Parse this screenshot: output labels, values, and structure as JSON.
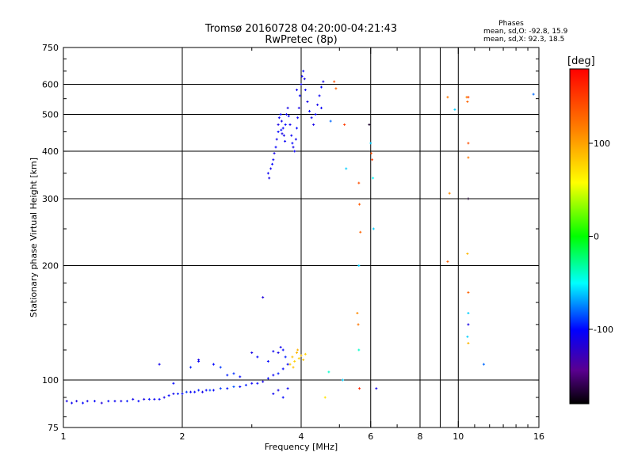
{
  "chart_data": {
    "type": "scatter",
    "title_line1": "Tromsø 20160728 04:20:00-04:21:43",
    "title_line2": "RwPretec (8p)",
    "stats": {
      "heading": "Phases",
      "line_o": "mean, sd,O: -92.8, 15.9",
      "line_x": "mean, sd,X:  92.3, 18.5"
    },
    "xlabel": "Frequency [MHz]",
    "ylabel": "Stationary phase Virtual Height [km]",
    "x_scale": "log",
    "y_scale": "log",
    "xlim": [
      1,
      16
    ],
    "ylim": [
      75,
      750
    ],
    "x_ticks": [
      {
        "v": 1,
        "label": "1"
      },
      {
        "v": 2,
        "label": "2"
      },
      {
        "v": 4,
        "label": "4"
      },
      {
        "v": 6,
        "label": "6"
      },
      {
        "v": 8,
        "label": "8"
      },
      {
        "v": 10,
        "label": "10"
      },
      {
        "v": 16,
        "label": "16"
      }
    ],
    "x_minor_ticks": [
      3,
      5,
      7,
      9,
      11,
      12,
      13,
      14,
      15
    ],
    "x_grid": [
      2,
      4,
      6,
      8,
      9,
      10
    ],
    "y_ticks": [
      {
        "v": 75,
        "label": "75"
      },
      {
        "v": 100,
        "label": "100"
      },
      {
        "v": 200,
        "label": "200"
      },
      {
        "v": 300,
        "label": "300"
      },
      {
        "v": 400,
        "label": "400"
      },
      {
        "v": 500,
        "label": "500"
      },
      {
        "v": 600,
        "label": "600"
      },
      {
        "v": 750,
        "label": "750"
      }
    ],
    "y_grid": [
      100,
      200,
      300,
      400,
      500,
      600
    ],
    "colorbar": {
      "label": "[deg]",
      "range": [
        -180,
        180
      ],
      "ticks": [
        {
          "v": 100,
          "label": "100"
        },
        {
          "v": 0,
          "label": "0"
        },
        {
          "v": -100,
          "label": "-100"
        }
      ]
    },
    "series_o": [
      [
        1.02,
        88,
        -110
      ],
      [
        1.05,
        87,
        -105
      ],
      [
        1.08,
        88,
        -112
      ],
      [
        1.12,
        87,
        -100
      ],
      [
        1.15,
        88,
        -108
      ],
      [
        1.2,
        88,
        -102
      ],
      [
        1.25,
        87,
        -115
      ],
      [
        1.3,
        88,
        -100
      ],
      [
        1.35,
        88,
        -105
      ],
      [
        1.4,
        88,
        -110
      ],
      [
        1.45,
        88,
        -95
      ],
      [
        1.5,
        89,
        -108
      ],
      [
        1.55,
        88,
        -100
      ],
      [
        1.6,
        89,
        -112
      ],
      [
        1.65,
        89,
        -98
      ],
      [
        1.7,
        89,
        -105
      ],
      [
        1.75,
        89,
        -100
      ],
      [
        1.8,
        90,
        -110
      ],
      [
        1.85,
        91,
        -100
      ],
      [
        1.9,
        92,
        -108
      ],
      [
        1.95,
        92,
        -95
      ],
      [
        2.0,
        92,
        -100
      ],
      [
        2.05,
        93,
        -90
      ],
      [
        2.1,
        93,
        -105
      ],
      [
        2.15,
        93,
        -100
      ],
      [
        2.2,
        94,
        -95
      ],
      [
        2.25,
        93,
        -110
      ],
      [
        2.3,
        94,
        -100
      ],
      [
        2.35,
        94,
        -88
      ],
      [
        2.4,
        94,
        -102
      ],
      [
        2.5,
        95,
        -90
      ],
      [
        2.6,
        95,
        -98
      ],
      [
        2.7,
        96,
        -85
      ],
      [
        2.8,
        96,
        -100
      ],
      [
        2.9,
        97,
        -95
      ],
      [
        3.0,
        98,
        -105
      ],
      [
        3.1,
        98,
        -100
      ],
      [
        3.2,
        99,
        -110
      ],
      [
        3.3,
        101,
        -100
      ],
      [
        3.4,
        103,
        -105
      ],
      [
        3.5,
        104,
        -95
      ],
      [
        3.6,
        107,
        -100
      ],
      [
        1.75,
        110,
        -108
      ],
      [
        1.9,
        98,
        -100
      ],
      [
        2.1,
        108,
        -95
      ],
      [
        2.2,
        113,
        -110
      ],
      [
        2.2,
        112,
        -105
      ],
      [
        2.4,
        110,
        -100
      ],
      [
        2.5,
        108,
        -90
      ],
      [
        2.6,
        103,
        -95
      ],
      [
        2.7,
        104,
        -92
      ],
      [
        2.8,
        102,
        -100
      ],
      [
        3.0,
        118,
        -110
      ],
      [
        3.1,
        115,
        -100
      ],
      [
        3.2,
        165,
        -115
      ],
      [
        3.3,
        112,
        -100
      ],
      [
        3.4,
        119,
        -105
      ],
      [
        3.5,
        118,
        -110
      ],
      [
        3.55,
        122,
        -108
      ],
      [
        3.6,
        120,
        -100
      ],
      [
        3.65,
        115,
        -95
      ],
      [
        3.7,
        110,
        -100
      ],
      [
        3.4,
        92,
        -105
      ],
      [
        3.5,
        94,
        -110
      ],
      [
        3.6,
        90,
        -100
      ],
      [
        3.7,
        95,
        -105
      ],
      [
        3.3,
        350,
        -105
      ],
      [
        3.32,
        340,
        -110
      ],
      [
        3.35,
        360,
        -108
      ],
      [
        3.38,
        370,
        -100
      ],
      [
        3.4,
        380,
        -105
      ],
      [
        3.42,
        395,
        -110
      ],
      [
        3.45,
        410,
        -102
      ],
      [
        3.47,
        430,
        -108
      ],
      [
        3.5,
        450,
        -100
      ],
      [
        3.5,
        470,
        -112
      ],
      [
        3.52,
        490,
        -105
      ],
      [
        3.55,
        500,
        -100
      ],
      [
        3.57,
        480,
        -110
      ],
      [
        3.6,
        460,
        -104
      ],
      [
        3.62,
        440,
        -108
      ],
      [
        3.65,
        470,
        -100
      ],
      [
        3.67,
        500,
        -105
      ],
      [
        3.7,
        520,
        -110
      ],
      [
        3.72,
        495,
        -102
      ],
      [
        3.75,
        470,
        -108
      ],
      [
        3.78,
        440,
        -105
      ],
      [
        3.8,
        420,
        -100
      ],
      [
        3.82,
        410,
        -110
      ],
      [
        3.85,
        400,
        -104
      ],
      [
        3.88,
        430,
        -108
      ],
      [
        3.9,
        460,
        -100
      ],
      [
        3.92,
        490,
        -105
      ],
      [
        3.95,
        520,
        -110
      ],
      [
        3.97,
        560,
        -102
      ],
      [
        4.0,
        600,
        -108
      ],
      [
        4.02,
        630,
        -105
      ],
      [
        4.05,
        650,
        -100
      ],
      [
        4.08,
        620,
        -110
      ],
      [
        4.1,
        580,
        -104
      ],
      [
        4.15,
        540,
        -108
      ],
      [
        4.2,
        510,
        -100
      ],
      [
        4.25,
        490,
        -105
      ],
      [
        4.3,
        470,
        -110
      ],
      [
        4.35,
        500,
        -102
      ],
      [
        4.4,
        530,
        -108
      ],
      [
        4.45,
        560,
        -105
      ],
      [
        4.5,
        590,
        -100
      ],
      [
        4.55,
        610,
        -110
      ],
      [
        4.5,
        520,
        -104
      ],
      [
        3.56,
        455,
        -98
      ],
      [
        3.58,
        445,
        -112
      ],
      [
        3.64,
        425,
        -104
      ],
      [
        3.9,
        580,
        -106
      ]
    ],
    "series_x": [
      [
        3.75,
        110,
        80
      ],
      [
        3.8,
        115,
        85
      ],
      [
        3.85,
        112,
        78
      ],
      [
        3.9,
        118,
        90
      ],
      [
        3.95,
        114,
        82
      ],
      [
        4.0,
        116,
        88
      ],
      [
        4.05,
        113,
        84
      ],
      [
        4.1,
        117,
        80
      ],
      [
        3.82,
        108,
        86
      ],
      [
        3.92,
        120,
        92
      ],
      [
        4.85,
        610,
        140
      ],
      [
        4.9,
        585,
        130
      ],
      [
        5.15,
        470,
        150
      ],
      [
        4.75,
        480,
        -80
      ],
      [
        5.6,
        330,
        140
      ],
      [
        5.62,
        290,
        135
      ],
      [
        5.65,
        245,
        130
      ],
      [
        5.6,
        200,
        -60
      ],
      [
        5.55,
        150,
        110
      ],
      [
        5.58,
        140,
        120
      ],
      [
        5.6,
        120,
        -40
      ],
      [
        5.62,
        95,
        160
      ],
      [
        6.2,
        95,
        -110
      ],
      [
        5.95,
        470,
        -170
      ],
      [
        6.0,
        420,
        -60
      ],
      [
        6.02,
        395,
        140
      ],
      [
        6.05,
        380,
        150
      ],
      [
        6.08,
        340,
        -50
      ],
      [
        6.1,
        250,
        -60
      ],
      [
        9.4,
        555,
        120
      ],
      [
        9.5,
        310,
        110
      ],
      [
        9.4,
        205,
        130
      ],
      [
        10.5,
        555,
        110
      ],
      [
        10.6,
        555,
        150
      ],
      [
        10.55,
        540,
        130
      ],
      [
        10.6,
        420,
        140
      ],
      [
        10.6,
        385,
        120
      ],
      [
        10.55,
        215,
        90
      ],
      [
        10.6,
        170,
        130
      ],
      [
        10.6,
        150,
        -60
      ],
      [
        10.6,
        140,
        -110
      ],
      [
        10.55,
        130,
        -60
      ],
      [
        10.6,
        125,
        90
      ],
      [
        11.6,
        110,
        -80
      ],
      [
        15.5,
        565,
        -80
      ],
      [
        9.8,
        515,
        -60
      ],
      [
        10.6,
        300,
        -170
      ],
      [
        5.2,
        360,
        -60
      ],
      [
        5.1,
        100,
        -60
      ],
      [
        4.7,
        105,
        -40
      ],
      [
        4.6,
        90,
        70
      ]
    ]
  }
}
